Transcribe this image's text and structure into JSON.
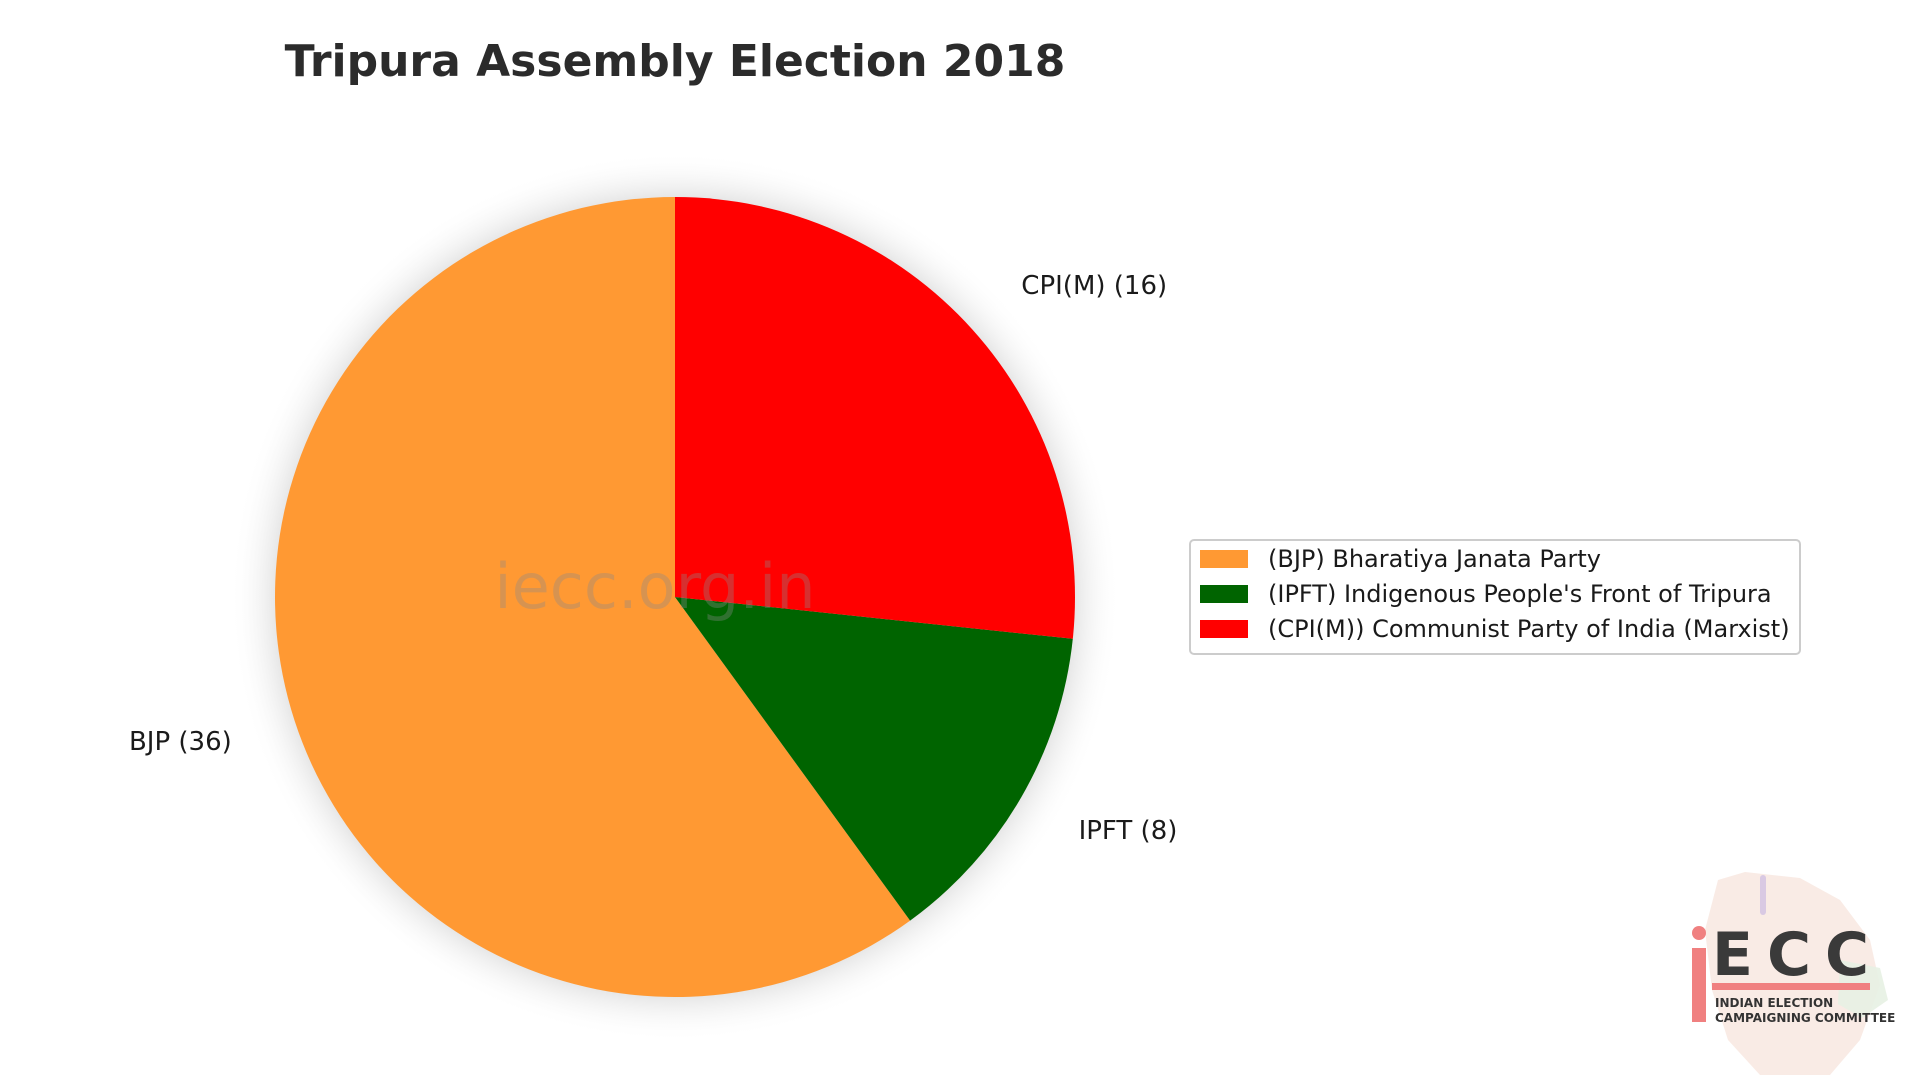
{
  "chart_data": {
    "type": "pie",
    "title": "Tripura Assembly Election 2018",
    "slices": [
      {
        "key": "BJP",
        "label": "BJP (36)",
        "value": 36,
        "color": "#FF9933",
        "legend": "(BJP) Bharatiya Janata Party"
      },
      {
        "key": "IPFT",
        "label": "IPFT (8)",
        "value": 8,
        "color": "#006400",
        "legend": "(IPFT) Indigenous People's Front of Tripura"
      },
      {
        "key": "CPI(M)",
        "label": "CPI(M) (16)",
        "value": 16,
        "color": "#FF0000",
        "legend": "(CPI(M)) Communist Party of India (Marxist)"
      }
    ],
    "start_angle": "top, counterclockwise",
    "legend_position": "right",
    "watermark": "iecc.org.in"
  },
  "logo": {
    "word": "ECC",
    "subtitle_line1": "INDIAN ELECTION",
    "subtitle_line2": "CAMPAIGNING COMMITTEE",
    "accent_color": "#F08080"
  }
}
